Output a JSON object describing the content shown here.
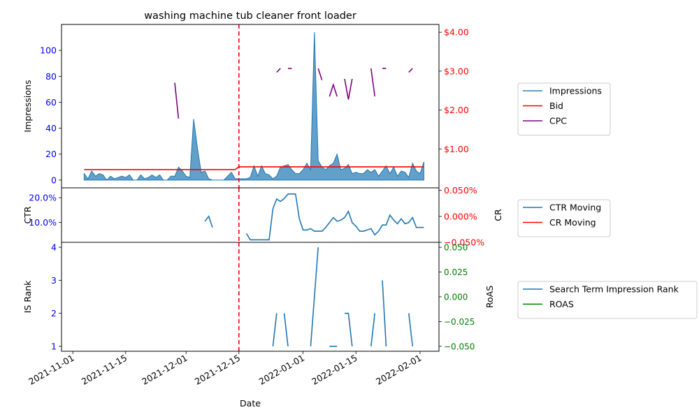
{
  "chart_data": {
    "type": "line",
    "title": "washing machine tub cleaner front loader",
    "xlabel": "Date",
    "x_range": [
      "2021-10-29",
      "2022-02-06"
    ],
    "x_ticks": [
      "2021-11-01",
      "2021-11-15",
      "2021-12-01",
      "2021-12-15",
      "2022-01-01",
      "2022-01-15",
      "2022-02-01"
    ],
    "marker_date": "2021-12-15",
    "marker_color": "#ff0000",
    "colors": {
      "impressions": "#1f77b4",
      "bid": "#ff0000",
      "cpc": "#800080",
      "left_axis_ticks": "#0000ff",
      "right_axis_top": "#ff0000",
      "right_axis_bottom": "#008000"
    },
    "panels": [
      {
        "id": "top",
        "ylabel_left": "Impressions",
        "ylim_left": [
          -6,
          120
        ],
        "yticks_left": [
          0,
          20,
          40,
          60,
          80,
          100
        ],
        "yticks_left_labels": [
          "0",
          "20",
          "40",
          "60",
          "80",
          "100"
        ],
        "ylim_right": [
          0.0,
          4.2
        ],
        "yticks_right": [
          1,
          2,
          3,
          4
        ],
        "yticks_right_labels": [
          "$1.00",
          "$2.00",
          "$3.00",
          "$4.00"
        ],
        "legend": [
          "Impressions",
          "Bid",
          "CPC"
        ],
        "legend_position": "right",
        "series": [
          {
            "name": "Impressions",
            "style": "filled-area",
            "axis": "left",
            "x": [
              "2021-11-04",
              "2021-11-05",
              "2021-11-06",
              "2021-11-07",
              "2021-11-08",
              "2021-11-09",
              "2021-11-10",
              "2021-11-11",
              "2021-11-12",
              "2021-11-13",
              "2021-11-14",
              "2021-11-15",
              "2021-11-16",
              "2021-11-17",
              "2021-11-18",
              "2021-11-19",
              "2021-11-20",
              "2021-11-21",
              "2021-11-22",
              "2021-11-23",
              "2021-11-24",
              "2021-11-25",
              "2021-11-26",
              "2021-11-27",
              "2021-11-28",
              "2021-11-29",
              "2021-11-30",
              "2021-12-01",
              "2021-12-02",
              "2021-12-03",
              "2021-12-04",
              "2021-12-05",
              "2021-12-06",
              "2021-12-07",
              "2021-12-08",
              "2021-12-09",
              "2021-12-10",
              "2021-12-11",
              "2021-12-12",
              "2021-12-13",
              "2021-12-14",
              "2021-12-15",
              "2021-12-16",
              "2021-12-17",
              "2021-12-18",
              "2021-12-19",
              "2021-12-20",
              "2021-12-21",
              "2021-12-22",
              "2021-12-23",
              "2021-12-24",
              "2021-12-25",
              "2021-12-26",
              "2021-12-27",
              "2021-12-28",
              "2021-12-29",
              "2021-12-30",
              "2021-12-31",
              "2022-01-01",
              "2022-01-02",
              "2022-01-03",
              "2022-01-04",
              "2022-01-05",
              "2022-01-06",
              "2022-01-07",
              "2022-01-08",
              "2022-01-09",
              "2022-01-10",
              "2022-01-11",
              "2022-01-12",
              "2022-01-13",
              "2022-01-14",
              "2022-01-15",
              "2022-01-16",
              "2022-01-17",
              "2022-01-18",
              "2022-01-19",
              "2022-01-20",
              "2022-01-21",
              "2022-01-22",
              "2022-01-23",
              "2022-01-24",
              "2022-01-25",
              "2022-01-26",
              "2022-01-27",
              "2022-01-28",
              "2022-01-29",
              "2022-01-30",
              "2022-01-31",
              "2022-02-01",
              "2022-02-02"
            ],
            "values": [
              5,
              1,
              7,
              3,
              5,
              4,
              0,
              3,
              1,
              2,
              3,
              2,
              4,
              0,
              0,
              4,
              1,
              2,
              4,
              2,
              4,
              0,
              0,
              3,
              3,
              10,
              7,
              3,
              2,
              47,
              25,
              6,
              7,
              1,
              0,
              0,
              0,
              0,
              3,
              6,
              1,
              1,
              1,
              1,
              2,
              11,
              3,
              11,
              5,
              4,
              1,
              3,
              10,
              11,
              12,
              8,
              5,
              5,
              8,
              13,
              8,
              114,
              15,
              10,
              8,
              11,
              13,
              20,
              8,
              9,
              12,
              5,
              6,
              5,
              5,
              8,
              6,
              8,
              3,
              7,
              11,
              5,
              10,
              3,
              7,
              6,
              2,
              13,
              7,
              5,
              14
            ]
          },
          {
            "name": "Bid",
            "style": "line",
            "axis": "right",
            "x": [
              "2021-11-04",
              "2021-12-14",
              "2021-12-15",
              "2022-02-02"
            ],
            "values": [
              0.47,
              0.47,
              0.54,
              0.54
            ]
          },
          {
            "name": "CPC",
            "style": "line",
            "axis": "right",
            "segments": [
              {
                "x": [
                  "2021-11-28",
                  "2021-11-29"
                ],
                "values": [
                  2.7,
                  1.78
                ]
              },
              {
                "x": [
                  "2021-12-25",
                  "2021-12-26"
                ],
                "values": [
                  2.97,
                  3.07
                ]
              },
              {
                "x": [
                  "2021-12-28",
                  "2021-12-29"
                ],
                "values": [
                  3.07,
                  3.07
                ]
              },
              {
                "x": [
                  "2022-01-05",
                  "2022-01-06"
                ],
                "values": [
                  3.07,
                  2.77
                ]
              },
              {
                "x": [
                  "2022-01-08",
                  "2022-01-09",
                  "2022-01-10"
                ],
                "values": [
                  2.35,
                  2.65,
                  2.35
                ]
              },
              {
                "x": [
                  "2022-01-12",
                  "2022-01-13",
                  "2022-01-14"
                ],
                "values": [
                  2.8,
                  2.27,
                  2.8
                ]
              },
              {
                "x": [
                  "2022-01-19",
                  "2022-01-20"
                ],
                "values": [
                  3.07,
                  2.35
                ]
              },
              {
                "x": [
                  "2022-01-22",
                  "2022-01-23"
                ],
                "values": [
                  3.07,
                  3.07
                ]
              },
              {
                "x": [
                  "2022-01-29",
                  "2022-01-30"
                ],
                "values": [
                  2.97,
                  3.07
                ]
              }
            ]
          }
        ]
      },
      {
        "id": "middle",
        "ylabel_left": "CTR",
        "ylabel_right": "CR",
        "ylim_left": [
          0.02,
          0.24
        ],
        "yticks_left": [
          0.1,
          0.2
        ],
        "yticks_left_labels": [
          "10.0%",
          "20.0%"
        ],
        "ylim_right": [
          -0.05,
          0.055
        ],
        "yticks_right": [
          -0.05,
          0.0,
          0.05
        ],
        "yticks_right_labels": [
          "−0.050%",
          "0.000%",
          "0.050%"
        ],
        "legend": [
          "CTR Moving",
          "CR Moving"
        ],
        "legend_position": "right",
        "series": [
          {
            "name": "CTR Moving",
            "style": "line",
            "axis": "left",
            "segments": [
              {
                "x": [
                  "2021-12-06",
                  "2021-12-07",
                  "2021-12-08"
                ],
                "values": [
                  0.105,
                  0.125,
                  0.08
                ]
              },
              {
                "x": [
                  "2021-12-17",
                  "2021-12-18",
                  "2021-12-19",
                  "2021-12-20",
                  "2021-12-21",
                  "2021-12-22",
                  "2021-12-23",
                  "2021-12-24",
                  "2021-12-25",
                  "2021-12-26",
                  "2021-12-27",
                  "2021-12-28",
                  "2021-12-29",
                  "2021-12-30",
                  "2021-12-31",
                  "2022-01-01",
                  "2022-01-02",
                  "2022-01-03",
                  "2022-01-04",
                  "2022-01-05",
                  "2022-01-06",
                  "2022-01-07",
                  "2022-01-08",
                  "2022-01-09",
                  "2022-01-10",
                  "2022-01-11",
                  "2022-01-12",
                  "2022-01-13",
                  "2022-01-14",
                  "2022-01-15",
                  "2022-01-16",
                  "2022-01-17",
                  "2022-01-18",
                  "2022-01-19",
                  "2022-01-20",
                  "2022-01-21",
                  "2022-01-22",
                  "2022-01-23",
                  "2022-01-24",
                  "2022-01-25",
                  "2022-01-26",
                  "2022-01-27",
                  "2022-01-28",
                  "2022-01-29",
                  "2022-01-30",
                  "2022-01-31",
                  "2022-02-01",
                  "2022-02-02"
                ],
                "values": [
                  0.055,
                  0.03,
                  0.03,
                  0.03,
                  0.03,
                  0.03,
                  0.03,
                  0.155,
                  0.195,
                  0.185,
                  0.197,
                  0.215,
                  0.215,
                  0.215,
                  0.115,
                  0.07,
                  0.07,
                  0.075,
                  0.065,
                  0.065,
                  0.065,
                  0.08,
                  0.1,
                  0.12,
                  0.105,
                  0.11,
                  0.12,
                  0.145,
                  0.1,
                  0.085,
                  0.065,
                  0.065,
                  0.07,
                  0.075,
                  0.05,
                  0.065,
                  0.09,
                  0.09,
                  0.13,
                  0.11,
                  0.095,
                  0.115,
                  0.095,
                  0.1,
                  0.12,
                  0.08,
                  0.08,
                  0.08
                ]
              }
            ]
          },
          {
            "name": "CR Moving",
            "style": "line",
            "axis": "right",
            "values": []
          }
        ]
      },
      {
        "id": "bottom",
        "ylabel_left": "IS Rank",
        "ylabel_right": "RoAS",
        "ylim_left": [
          0.85,
          4.15
        ],
        "yticks_left": [
          1,
          2,
          3,
          4
        ],
        "yticks_left_labels": [
          "1",
          "2",
          "3",
          "4"
        ],
        "ylim_right": [
          -0.055,
          0.055
        ],
        "yticks_right": [
          -0.05,
          -0.025,
          0.0,
          0.025,
          0.05
        ],
        "yticks_right_labels": [
          "−0.050",
          "−0.025",
          "0.000",
          "0.025",
          "0.050"
        ],
        "legend": [
          "Search Term Impression Rank",
          "ROAS"
        ],
        "legend_position": "right",
        "series": [
          {
            "name": "Search Term Impression Rank",
            "style": "line",
            "axis": "left",
            "segments": [
              {
                "x": [
                  "2021-12-24",
                  "2021-12-25"
                ],
                "values": [
                  1,
                  2
                ]
              },
              {
                "x": [
                  "2021-12-27",
                  "2021-12-28"
                ],
                "values": [
                  2,
                  1
                ]
              },
              {
                "x": [
                  "2022-01-03",
                  "2022-01-05"
                ],
                "values": [
                  1,
                  4
                ]
              },
              {
                "x": [
                  "2022-01-08",
                  "2022-01-10"
                ],
                "values": [
                  1,
                  1
                ]
              },
              {
                "x": [
                  "2022-01-12",
                  "2022-01-13",
                  "2022-01-14"
                ],
                "values": [
                  2,
                  2,
                  1
                ]
              },
              {
                "x": [
                  "2022-01-19",
                  "2022-01-20"
                ],
                "values": [
                  1,
                  2
                ]
              },
              {
                "x": [
                  "2022-01-22",
                  "2022-01-23"
                ],
                "values": [
                  3,
                  1
                ]
              },
              {
                "x": [
                  "2022-01-29",
                  "2022-01-30"
                ],
                "values": [
                  2,
                  1
                ]
              }
            ]
          },
          {
            "name": "ROAS",
            "style": "line",
            "axis": "right",
            "values": []
          }
        ]
      }
    ]
  }
}
